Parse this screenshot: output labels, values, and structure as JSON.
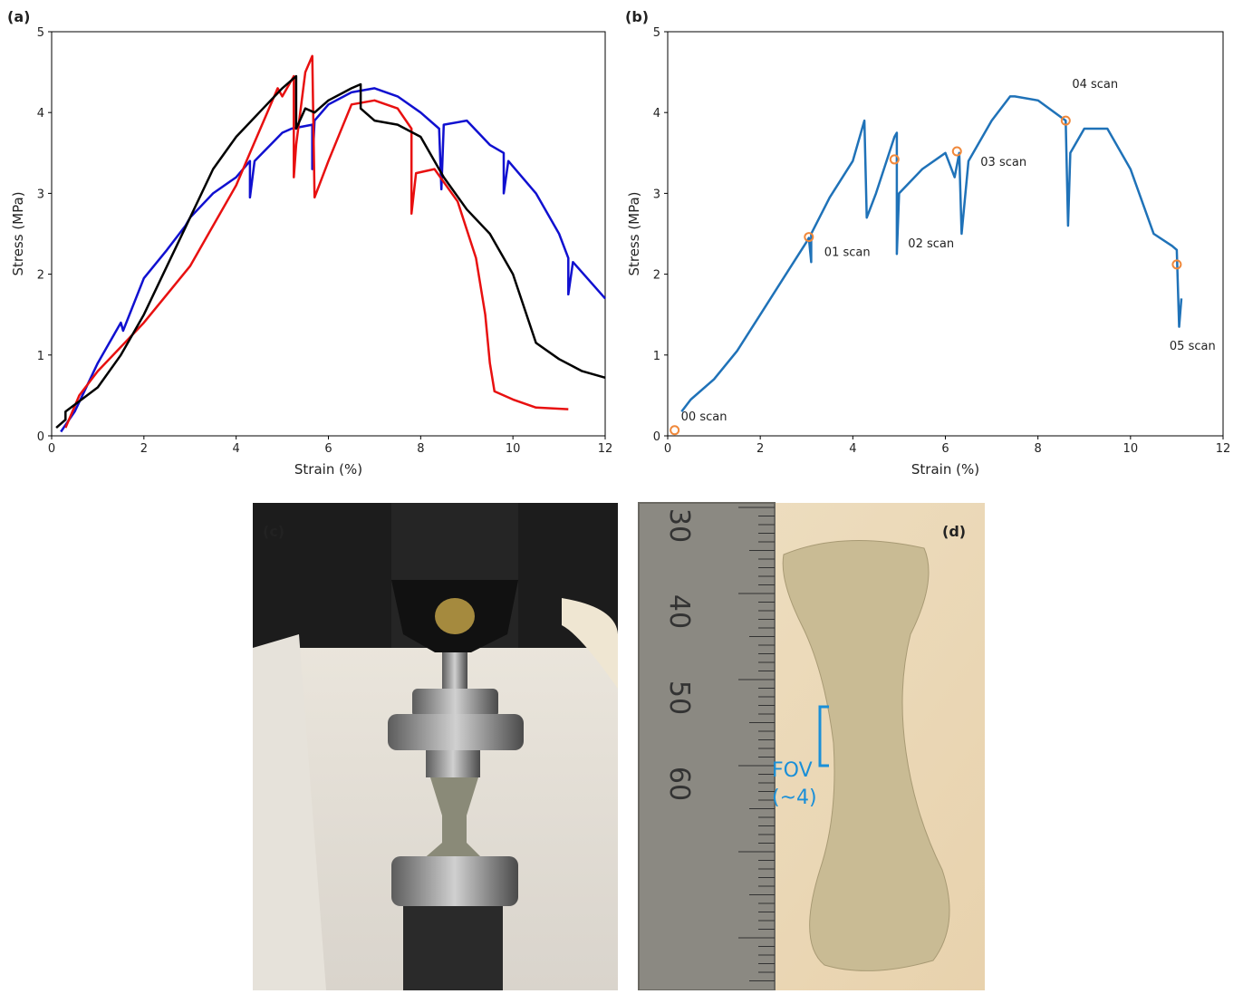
{
  "chart_data": [
    {
      "type": "line",
      "label": "(a)",
      "x_label": "Strain (%)",
      "y_label": "Stress (MPa)",
      "xlim": [
        0,
        12
      ],
      "ylim": [
        0,
        5
      ],
      "xticks": [
        0,
        2,
        4,
        6,
        8,
        10,
        12
      ],
      "yticks": [
        0,
        1,
        2,
        3,
        4,
        5
      ],
      "series": [
        {
          "color": "#1010d0",
          "x": [
            0.2,
            0.5,
            1,
            1.5,
            1.55,
            2,
            2.5,
            2.9,
            3,
            3.5,
            4,
            4.3,
            4.3,
            4.4,
            5,
            5.2,
            5.65,
            5.65,
            5.7,
            6,
            6.5,
            7,
            7.5,
            8,
            8.4,
            8.45,
            8.5,
            9,
            9.5,
            9.8,
            9.8,
            9.9,
            10.5,
            11,
            11.2,
            11.2,
            11.3,
            12
          ],
          "values": [
            0.05,
            0.3,
            0.9,
            1.4,
            1.3,
            1.95,
            2.3,
            2.6,
            2.7,
            3.0,
            3.2,
            3.4,
            2.95,
            3.4,
            3.75,
            3.8,
            3.85,
            3.3,
            3.9,
            4.1,
            4.25,
            4.3,
            4.2,
            4.0,
            3.8,
            3.05,
            3.85,
            3.9,
            3.6,
            3.5,
            3.0,
            3.4,
            3.0,
            2.5,
            2.2,
            1.75,
            2.15,
            1.7
          ]
        },
        {
          "color": "#e81010",
          "x": [
            0.3,
            0.6,
            1,
            1.5,
            2,
            2.5,
            3,
            3.5,
            4,
            4.3,
            4.6,
            4.9,
            5,
            5.25,
            5.25,
            5.3,
            5.5,
            5.65,
            5.7,
            6,
            6.5,
            7,
            7.5,
            7.8,
            7.8,
            7.9,
            8.3,
            8.8,
            9.2,
            9.4,
            9.5,
            9.6,
            10,
            10.5,
            11.2
          ],
          "values": [
            0.1,
            0.5,
            0.8,
            1.1,
            1.4,
            1.75,
            2.1,
            2.6,
            3.1,
            3.5,
            3.9,
            4.3,
            4.2,
            4.45,
            3.2,
            3.6,
            4.5,
            4.7,
            2.95,
            3.4,
            4.1,
            4.15,
            4.05,
            3.8,
            2.75,
            3.25,
            3.3,
            2.9,
            2.2,
            1.5,
            0.9,
            0.55,
            0.45,
            0.35,
            0.33
          ]
        },
        {
          "color": "#000000",
          "x": [
            0.1,
            0.3,
            0.3,
            1,
            1.5,
            2,
            2.5,
            3,
            3.5,
            4,
            4.5,
            5,
            5.3,
            5.3,
            5.5,
            5.7,
            6,
            6.5,
            6.7,
            6.7,
            7,
            7.5,
            8,
            8.5,
            9,
            9.5,
            10,
            10.5,
            11,
            11.5,
            12
          ],
          "values": [
            0.1,
            0.2,
            0.3,
            0.6,
            1.0,
            1.5,
            2.1,
            2.7,
            3.3,
            3.7,
            4.0,
            4.3,
            4.45,
            3.8,
            4.05,
            4.0,
            4.15,
            4.3,
            4.35,
            4.05,
            3.9,
            3.85,
            3.7,
            3.2,
            2.8,
            2.5,
            2.0,
            1.15,
            0.95,
            0.8,
            0.72
          ]
        }
      ]
    },
    {
      "type": "line",
      "label": "(b)",
      "x_label": "Strain (%)",
      "y_label": "Stress (MPa)",
      "xlim": [
        0,
        12
      ],
      "ylim": [
        0,
        5
      ],
      "xticks": [
        0,
        2,
        4,
        6,
        8,
        10,
        12
      ],
      "yticks": [
        0,
        1,
        2,
        3,
        4,
        5
      ],
      "series": [
        {
          "color": "#1f72b8",
          "x": [
            0.3,
            0.5,
            1,
            1.5,
            2,
            2.5,
            3,
            3.05,
            3.1,
            3.1,
            3.5,
            4,
            4.25,
            4.3,
            4.5,
            4.9,
            4.95,
            4.95,
            5,
            5.5,
            6,
            6.2,
            6.3,
            6.35,
            6.5,
            7,
            7.4,
            7.5,
            8,
            8.6,
            8.65,
            8.7,
            9,
            9.5,
            10,
            10.5,
            10.9,
            11,
            11.05,
            11.1
          ],
          "values": [
            0.3,
            0.45,
            0.7,
            1.05,
            1.5,
            1.95,
            2.4,
            2.45,
            2.15,
            2.5,
            2.95,
            3.4,
            3.9,
            2.7,
            3.0,
            3.7,
            3.75,
            2.25,
            3.0,
            3.3,
            3.5,
            3.2,
            3.5,
            2.5,
            3.4,
            3.9,
            4.2,
            4.2,
            4.15,
            3.9,
            2.6,
            3.5,
            3.8,
            3.8,
            3.3,
            2.5,
            2.35,
            2.3,
            1.35,
            1.7
          ]
        }
      ],
      "marker_color": "#f0883a",
      "annotations": [
        {
          "text": "00 scan",
          "x": 0.15,
          "y": 0.07
        },
        {
          "text": "01 scan",
          "x": 3.05,
          "y": 2.46
        },
        {
          "text": "02 scan",
          "x": 4.9,
          "y": 3.42
        },
        {
          "text": "03 scan",
          "x": 6.25,
          "y": 3.52
        },
        {
          "text": "04 scan",
          "x": 8.6,
          "y": 3.9
        },
        {
          "text": "05 scan",
          "x": 11.0,
          "y": 2.12
        }
      ]
    }
  ],
  "photos": [
    {
      "label": "(c)"
    },
    {
      "label": "(d)",
      "ruler_marks": [
        "30",
        "40",
        "50",
        "60"
      ],
      "annotation": [
        "FOV",
        "(~4)"
      ]
    }
  ]
}
